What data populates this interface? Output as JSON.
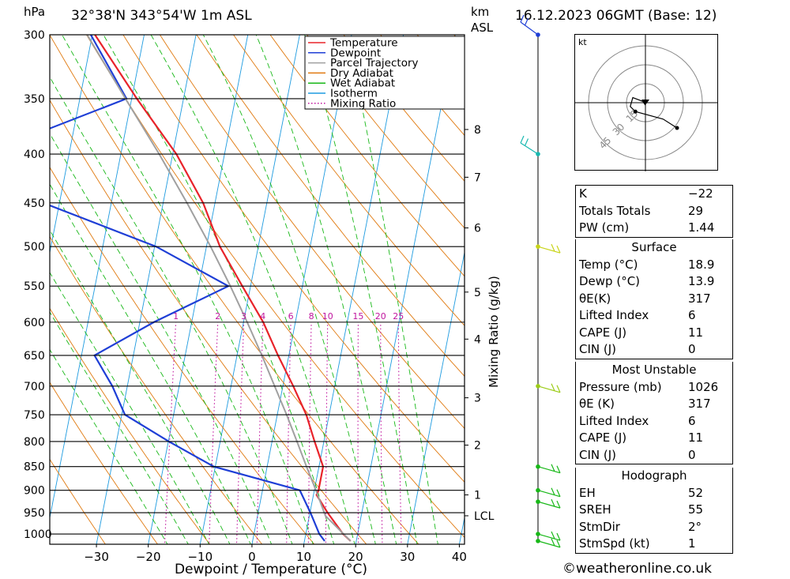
{
  "header": {
    "hpa_label": "hPa",
    "location": "32°38'N  343°54'W  1m  ASL",
    "km_label": "km",
    "asl_label": "ASL",
    "datetime": "16.12.2023  06GMT  (Base: 12)"
  },
  "legend": {
    "items": [
      {
        "label": "Temperature",
        "color": "#e8232a",
        "style": "solid"
      },
      {
        "label": "Dewpoint",
        "color": "#1f3fd6",
        "style": "solid"
      },
      {
        "label": "Parcel Trajectory",
        "color": "#a0a0a0",
        "style": "solid"
      },
      {
        "label": "Dry Adiabat",
        "color": "#e07a10",
        "style": "solid"
      },
      {
        "label": "Wet Adiabat",
        "color": "#18b818",
        "style": "solid"
      },
      {
        "label": "Isotherm",
        "color": "#1e9be0",
        "style": "solid"
      },
      {
        "label": "Mixing Ratio",
        "color": "#c0159e",
        "style": "dotted"
      }
    ]
  },
  "chart_data": {
    "type": "line",
    "chart_kind": "skew-T log-P sounding",
    "xlabel": "Dewpoint / Temperature (°C)",
    "ylabel": "hPa",
    "right_axis_label": "Mixing Ratio (g/kg)",
    "x_ticks": [
      -30,
      -20,
      -10,
      0,
      10,
      20,
      30,
      40
    ],
    "x_tick_labels": [
      "−30",
      "−20",
      "−10",
      "0",
      "10",
      "20",
      "30",
      "40"
    ],
    "pressure_levels": [
      300,
      350,
      400,
      450,
      500,
      550,
      600,
      650,
      700,
      750,
      800,
      850,
      900,
      950,
      1000
    ],
    "ylim": [
      1025,
      300
    ],
    "temp_at_bottom_left": -39,
    "temp_at_bottom_right": 41,
    "skew_degC_per_decade": 36,
    "height_ticks": [
      {
        "label": "8",
        "p": 377
      },
      {
        "label": "7",
        "p": 423
      },
      {
        "label": "6",
        "p": 478
      },
      {
        "label": "5",
        "p": 558
      },
      {
        "label": "4",
        "p": 625
      },
      {
        "label": "3",
        "p": 720
      },
      {
        "label": "2",
        "p": 807
      },
      {
        "label": "1",
        "p": 910
      },
      {
        "label": "LCL",
        "p": 957
      }
    ],
    "mixing_ratio_labels": [
      "1",
      "2",
      "3",
      "4",
      "6",
      "8",
      "10",
      "15",
      "20",
      "25"
    ],
    "mixing_ratio_values": [
      1,
      2,
      3,
      4,
      6,
      8,
      10,
      15,
      20,
      25
    ],
    "series": [
      {
        "name": "Temperature",
        "color": "#e8232a",
        "points": [
          {
            "p": 1017,
            "t": 18.9
          },
          {
            "p": 1000,
            "t": 17.2
          },
          {
            "p": 950,
            "t": 13.4
          },
          {
            "p": 910,
            "t": 10.6
          },
          {
            "p": 900,
            "t": 10.8
          },
          {
            "p": 850,
            "t": 10.8
          },
          {
            "p": 800,
            "t": 8.2
          },
          {
            "p": 750,
            "t": 5.6
          },
          {
            "p": 700,
            "t": 2.0
          },
          {
            "p": 650,
            "t": -2.1
          },
          {
            "p": 600,
            "t": -6.2
          },
          {
            "p": 550,
            "t": -11.6
          },
          {
            "p": 500,
            "t": -17.4
          },
          {
            "p": 450,
            "t": -22.3
          },
          {
            "p": 400,
            "t": -29.3
          },
          {
            "p": 350,
            "t": -39.0
          },
          {
            "p": 300,
            "t": -49.5
          }
        ]
      },
      {
        "name": "Dewpoint",
        "color": "#1f3fd6",
        "points": [
          {
            "p": 1017,
            "t": 13.9
          },
          {
            "p": 1000,
            "t": 12.6
          },
          {
            "p": 950,
            "t": 10.1
          },
          {
            "p": 900,
            "t": 7.2
          },
          {
            "p": 850,
            "t": -10.3
          },
          {
            "p": 800,
            "t": -19.9
          },
          {
            "p": 750,
            "t": -29.4
          },
          {
            "p": 700,
            "t": -32.9
          },
          {
            "p": 650,
            "t": -37.5
          },
          {
            "p": 600,
            "t": -27.3
          },
          {
            "p": 550,
            "t": -14.3
          },
          {
            "p": 500,
            "t": -29.7
          },
          {
            "p": 450,
            "t": -53.1
          },
          {
            "p": 400,
            "t": -66.4
          },
          {
            "p": 350,
            "t": -41.0
          },
          {
            "p": 300,
            "t": -50.3
          }
        ]
      },
      {
        "name": "Parcel Trajectory",
        "color": "#a0a0a0",
        "points": [
          {
            "p": 1017,
            "t": 18.9
          },
          {
            "p": 957,
            "t": 13.1
          },
          {
            "p": 900,
            "t": 10.3
          },
          {
            "p": 850,
            "t": 7.6
          },
          {
            "p": 800,
            "t": 4.8
          },
          {
            "p": 750,
            "t": 1.8
          },
          {
            "p": 700,
            "t": -1.6
          },
          {
            "p": 650,
            "t": -5.2
          },
          {
            "p": 600,
            "t": -9.3
          },
          {
            "p": 550,
            "t": -13.9
          },
          {
            "p": 500,
            "t": -19.2
          },
          {
            "p": 450,
            "t": -25.4
          },
          {
            "p": 400,
            "t": -32.6
          },
          {
            "p": 350,
            "t": -41.2
          },
          {
            "p": 300,
            "t": -51.0
          }
        ]
      }
    ],
    "wind_barbs": [
      {
        "p": 1017,
        "color": "#18b818"
      },
      {
        "p": 1000,
        "color": "#18b818"
      },
      {
        "p": 925,
        "color": "#18b818"
      },
      {
        "p": 900,
        "color": "#18b818"
      },
      {
        "p": 850,
        "color": "#18b818"
      },
      {
        "p": 700,
        "color": "#9ccc18"
      },
      {
        "p": 500,
        "color": "#c8d418"
      },
      {
        "p": 400,
        "color": "#18b8b0"
      },
      {
        "p": 300,
        "color": "#1f3fd6"
      }
    ],
    "hodograph": {
      "unit_label": "kt",
      "ring_labels": [
        "15",
        "30",
        "45"
      ],
      "rings_kt": [
        15,
        30,
        45
      ],
      "points_kt": [
        [
          0,
          -2
        ],
        [
          -2,
          1
        ],
        [
          -10,
          4
        ],
        [
          -12,
          -3
        ],
        [
          -8,
          -7
        ],
        [
          14,
          -13
        ],
        [
          25,
          -20
        ]
      ]
    }
  },
  "indices": {
    "top": [
      {
        "k": "K",
        "v": "−22"
      },
      {
        "k": "Totals Totals",
        "v": "29"
      },
      {
        "k": "PW (cm)",
        "v": "1.44"
      }
    ],
    "surface": {
      "title": "Surface",
      "rows": [
        {
          "k": "Temp (°C)",
          "v": "18.9"
        },
        {
          "k": "Dewp (°C)",
          "v": "13.9"
        },
        {
          "k": "θE(K)",
          "v": "317"
        },
        {
          "k": "Lifted Index",
          "v": "6"
        },
        {
          "k": "CAPE (J)",
          "v": "11"
        },
        {
          "k": "CIN (J)",
          "v": "0"
        }
      ]
    },
    "most_unstable": {
      "title": "Most Unstable",
      "rows": [
        {
          "k": "Pressure (mb)",
          "v": "1026"
        },
        {
          "k": "θE (K)",
          "v": "317"
        },
        {
          "k": "Lifted Index",
          "v": "6"
        },
        {
          "k": "CAPE (J)",
          "v": "11"
        },
        {
          "k": "CIN (J)",
          "v": "0"
        }
      ]
    },
    "hodograph": {
      "title": "Hodograph",
      "rows": [
        {
          "k": "EH",
          "v": "52"
        },
        {
          "k": "SREH",
          "v": "55"
        },
        {
          "k": "StmDir",
          "v": "2°"
        },
        {
          "k": "StmSpd (kt)",
          "v": "1"
        }
      ]
    }
  },
  "footer": {
    "copyright": "©weatheronline.co.uk"
  }
}
